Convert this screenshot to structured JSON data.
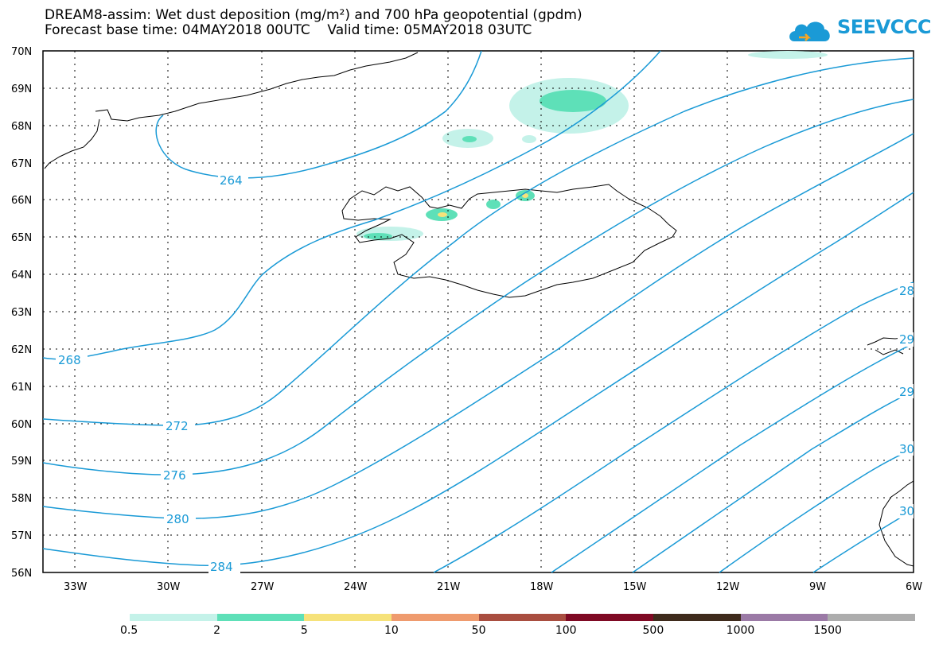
{
  "header": {
    "line1": "DREAM8-assim: Wet dust deposition (mg/m²) and 700 hPa geopotential (gpdm)",
    "line2": "Forecast base time: 04MAY2018 00UTC    Valid time: 05MAY2018 03UTC"
  },
  "logo": {
    "text": "SEEVCCC",
    "icon": "cloud-logo-icon",
    "color": "#1a9ad6"
  },
  "map": {
    "lat_labels": [
      "70N",
      "69N",
      "68N",
      "67N",
      "66N",
      "65N",
      "64N",
      "63N",
      "62N",
      "61N",
      "60N",
      "59N",
      "58N",
      "57N",
      "56N"
    ],
    "lon_labels": [
      "33W",
      "30W",
      "27W",
      "24W",
      "21W",
      "18W",
      "15W",
      "12W",
      "9W",
      "6W"
    ],
    "contour_labels": [
      "264",
      "268",
      "272",
      "276",
      "280",
      "284",
      "28",
      "29",
      "29",
      "30",
      "30"
    ],
    "contour_color": "#1a9ad6"
  },
  "legend": {
    "colors": [
      "#c4f2e9",
      "#5ee0b8",
      "#f6e27a",
      "#ef9b6e",
      "#a94e40",
      "#7f0a24",
      "#3f2b1c",
      "#9b7aa6",
      "#adadad"
    ],
    "labels": [
      "0.5",
      "2",
      "5",
      "10",
      "50",
      "100",
      "500",
      "1000",
      "1500"
    ]
  }
}
